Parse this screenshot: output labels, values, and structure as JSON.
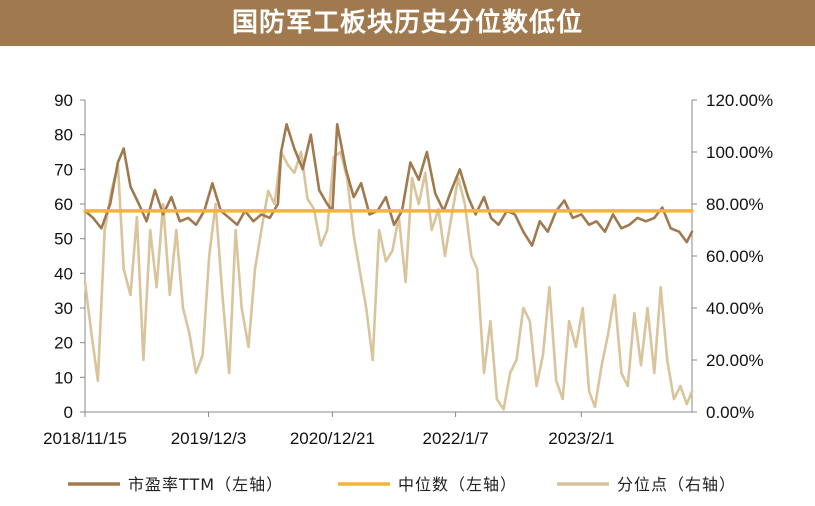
{
  "title": "国防军工板块历史分位数低位",
  "colors": {
    "banner": "#a07a4e",
    "pe": "#a07a4e",
    "median": "#f4b43a",
    "percentile": "#d9c49c"
  },
  "chart_data": {
    "type": "line",
    "title": "国防军工板块历史分位数低位",
    "x_ticks": [
      "2018/11/15",
      "2019/12/3",
      "2020/12/21",
      "2022/1/7",
      "2023/2/1"
    ],
    "x_range": [
      "2018/11/15",
      "2024/1/10"
    ],
    "y_left": {
      "ticks": [
        "90",
        "80",
        "70",
        "60",
        "50",
        "40",
        "30",
        "20",
        "10",
        "0"
      ],
      "min": 0,
      "max": 90
    },
    "y_right": {
      "ticks": [
        "120.00%",
        "100.00%",
        "80.00%",
        "60.00%",
        "40.00%",
        "20.00%",
        "0.00%"
      ],
      "min": 0,
      "max": 120
    },
    "series": [
      {
        "name": "市盈率TTM（左轴）",
        "axis": "left",
        "color": "#a07a4e",
        "x": [
          "2018/11/15",
          "2018/12/10",
          "2019/1/5",
          "2019/2/1",
          "2019/2/25",
          "2019/3/15",
          "2019/4/5",
          "2019/5/1",
          "2019/5/25",
          "2019/6/20",
          "2019/7/15",
          "2019/8/10",
          "2019/9/5",
          "2019/10/1",
          "2019/10/25",
          "2019/11/20",
          "2019/12/15",
          "2020/1/10",
          "2020/2/5",
          "2020/3/1",
          "2020/3/25",
          "2020/4/20",
          "2020/5/15",
          "2020/6/10",
          "2020/7/5",
          "2020/7/15",
          "2020/8/1",
          "2020/8/25",
          "2020/9/20",
          "2020/10/15",
          "2020/11/10",
          "2020/12/5",
          "2020/12/21",
          "2021/1/5",
          "2021/2/1",
          "2021/2/25",
          "2021/3/20",
          "2021/4/15",
          "2021/5/10",
          "2021/6/5",
          "2021/6/30",
          "2021/7/25",
          "2021/8/20",
          "2021/9/15",
          "2021/10/10",
          "2021/11/5",
          "2021/12/1",
          "2021/12/25",
          "2022/1/20",
          "2022/2/15",
          "2022/3/10",
          "2022/4/5",
          "2022/4/27",
          "2022/5/20",
          "2022/6/15",
          "2022/7/10",
          "2022/8/5",
          "2022/9/1",
          "2022/9/25",
          "2022/10/20",
          "2022/11/15",
          "2022/12/10",
          "2023/1/5",
          "2023/2/1",
          "2023/2/25",
          "2023/3/20",
          "2023/4/15",
          "2023/5/10",
          "2023/6/5",
          "2023/6/30",
          "2023/7/25",
          "2023/8/20",
          "2023/9/15",
          "2023/10/10",
          "2023/11/5",
          "2023/12/1",
          "2023/12/25",
          "2024/1/10"
        ],
        "y": [
          58,
          56,
          53,
          60,
          72,
          76,
          65,
          60,
          55,
          64,
          57,
          62,
          55,
          56,
          54,
          58,
          66,
          58,
          56,
          54,
          58,
          55,
          57,
          56,
          60,
          75,
          83,
          76,
          70,
          80,
          64,
          60,
          58,
          83,
          70,
          62,
          66,
          57,
          58,
          62,
          54,
          58,
          72,
          67,
          75,
          63,
          58,
          64,
          70,
          62,
          57,
          62,
          56,
          54,
          58,
          57,
          52,
          48,
          55,
          52,
          58,
          61,
          56,
          57,
          54,
          55,
          52,
          57,
          53,
          54,
          56,
          55,
          56,
          59,
          53,
          52,
          49,
          52
        ]
      },
      {
        "name": "中位数（左轴）",
        "axis": "left",
        "color": "#f4b43a",
        "x": [
          "2018/11/15",
          "2024/1/10"
        ],
        "y": [
          58,
          58
        ]
      },
      {
        "name": "分位点（右轴）",
        "axis": "right",
        "color": "#d9c49c",
        "x": [
          "2018/11/15",
          "2018/12/5",
          "2018/12/25",
          "2019/1/15",
          "2019/2/5",
          "2019/2/25",
          "2019/3/15",
          "2019/4/5",
          "2019/4/25",
          "2019/5/15",
          "2019/6/5",
          "2019/6/25",
          "2019/7/15",
          "2019/8/5",
          "2019/8/25",
          "2019/9/15",
          "2019/10/5",
          "2019/10/25",
          "2019/11/15",
          "2019/12/5",
          "2019/12/25",
          "2020/1/15",
          "2020/2/5",
          "2020/2/25",
          "2020/3/15",
          "2020/4/5",
          "2020/4/25",
          "2020/5/15",
          "2020/6/5",
          "2020/6/25",
          "2020/7/15",
          "2020/8/5",
          "2020/8/25",
          "2020/9/15",
          "2020/10/5",
          "2020/10/25",
          "2020/11/15",
          "2020/12/5",
          "2020/12/25",
          "2021/1/15",
          "2021/2/5",
          "2021/2/25",
          "2021/3/15",
          "2021/4/5",
          "2021/4/25",
          "2021/5/15",
          "2021/6/5",
          "2021/6/25",
          "2021/7/15",
          "2021/8/5",
          "2021/8/25",
          "2021/9/15",
          "2021/10/5",
          "2021/10/25",
          "2021/11/15",
          "2021/12/5",
          "2021/12/25",
          "2022/1/15",
          "2022/2/5",
          "2022/2/25",
          "2022/3/15",
          "2022/4/5",
          "2022/4/25",
          "2022/5/15",
          "2022/6/5",
          "2022/6/25",
          "2022/7/15",
          "2022/8/5",
          "2022/8/25",
          "2022/9/15",
          "2022/10/5",
          "2022/10/25",
          "2022/11/15",
          "2022/12/5",
          "2022/12/25",
          "2023/1/15",
          "2023/2/5",
          "2023/2/25",
          "2023/3/15",
          "2023/4/5",
          "2023/4/25",
          "2023/5/15",
          "2023/6/5",
          "2023/6/25",
          "2023/7/15",
          "2023/8/5",
          "2023/8/25",
          "2023/9/15",
          "2023/10/5",
          "2023/10/25",
          "2023/11/15",
          "2023/12/5",
          "2023/12/25",
          "2024/1/10"
        ],
        "y": [
          50,
          30,
          12,
          70,
          85,
          95,
          55,
          45,
          75,
          20,
          70,
          48,
          80,
          45,
          70,
          40,
          30,
          15,
          22,
          60,
          80,
          45,
          15,
          70,
          40,
          25,
          55,
          70,
          85,
          80,
          100,
          95,
          92,
          100,
          82,
          78,
          64,
          70,
          98,
          100,
          90,
          68,
          55,
          40,
          20,
          70,
          58,
          62,
          75,
          50,
          90,
          80,
          92,
          70,
          78,
          60,
          75,
          90,
          80,
          60,
          55,
          15,
          35,
          5,
          1,
          15,
          20,
          40,
          35,
          10,
          22,
          48,
          12,
          5,
          35,
          25,
          40,
          8,
          2,
          18,
          30,
          45,
          15,
          10,
          38,
          18,
          40,
          15,
          48,
          20,
          5,
          10,
          3,
          8
        ]
      }
    ],
    "legend": [
      "市盈率TTM（左轴）",
      "中位数（左轴）",
      "分位点（右轴）"
    ],
    "legend_position": "bottom",
    "grid": false
  }
}
